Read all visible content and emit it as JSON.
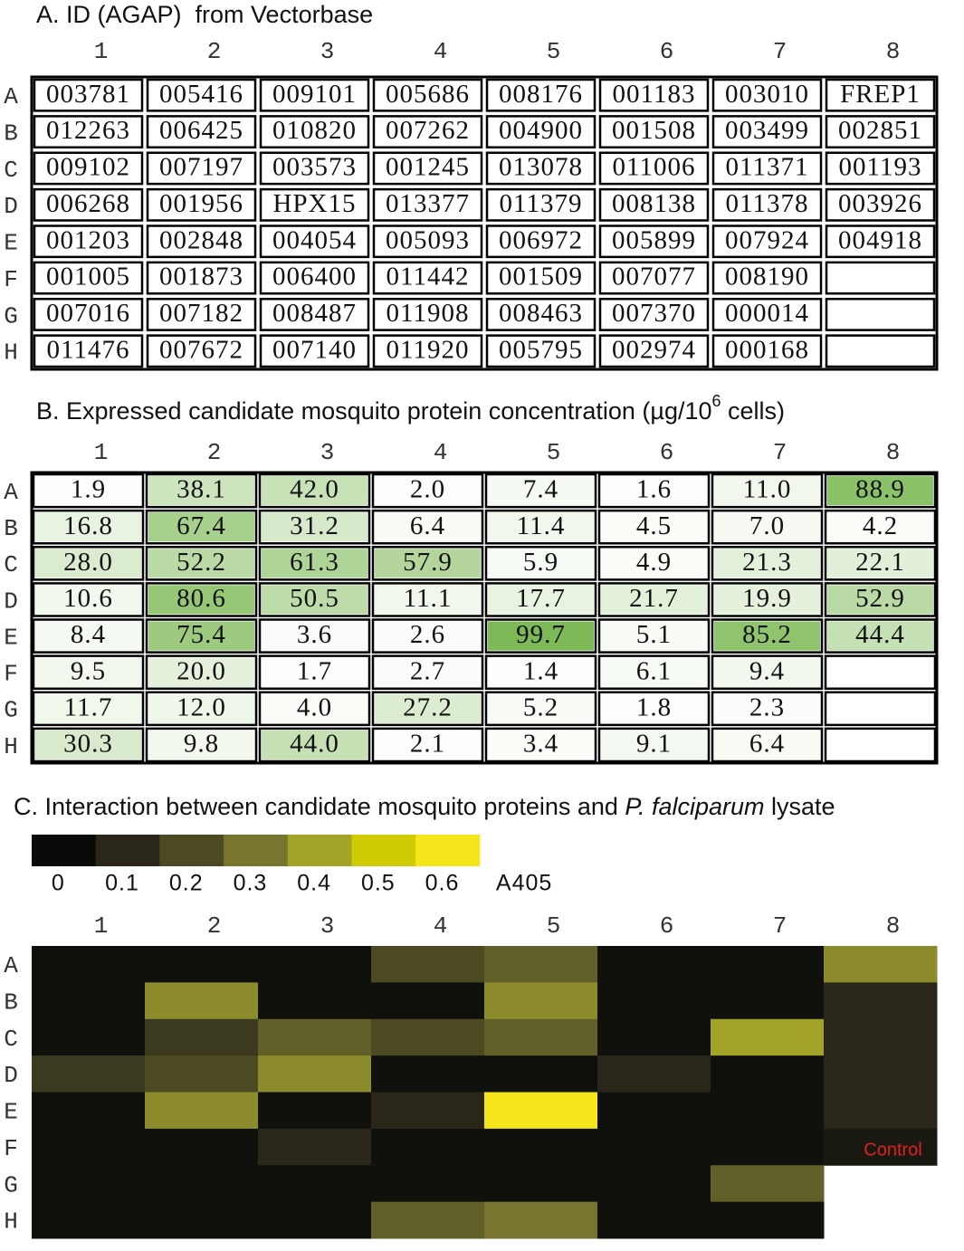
{
  "panel_a": {
    "title": "A. ID (AGAP)  from Vectorbase",
    "columns": [
      "1",
      "2",
      "3",
      "4",
      "5",
      "6",
      "7",
      "8"
    ],
    "rows": [
      "A",
      "B",
      "C",
      "D",
      "E",
      "F",
      "G",
      "H"
    ],
    "cells": [
      [
        "003781",
        "005416",
        "009101",
        "005686",
        "008176",
        "001183",
        "003010",
        "FREP1"
      ],
      [
        "012263",
        "006425",
        "010820",
        "007262",
        "004900",
        "001508",
        "003499",
        "002851"
      ],
      [
        "009102",
        "007197",
        "003573",
        "001245",
        "013078",
        "011006",
        "011371",
        "001193"
      ],
      [
        "006268",
        "001956",
        "HPX15",
        "013377",
        "011379",
        "008138",
        "011378",
        "003926"
      ],
      [
        "001203",
        "002848",
        "004054",
        "005093",
        "006972",
        "005899",
        "007924",
        "004918"
      ],
      [
        "001005",
        "001873",
        "006400",
        "011442",
        "001509",
        "007077",
        "008190",
        null
      ],
      [
        "007016",
        "007182",
        "008487",
        "011908",
        "008463",
        "007370",
        "000014",
        null
      ],
      [
        "011476",
        "007672",
        "007140",
        "011920",
        "005795",
        "002974",
        "000168",
        null
      ]
    ]
  },
  "chart_data": [
    {
      "type": "heatmap",
      "title": "B. Expressed candidate mosquito protein concentration (µg/10",
      "title_sup": "6",
      "title_end": " cells)",
      "x": [
        "1",
        "2",
        "3",
        "4",
        "5",
        "6",
        "7",
        "8"
      ],
      "y": [
        "A",
        "B",
        "C",
        "D",
        "E",
        "F",
        "G",
        "H"
      ],
      "values": [
        [
          1.9,
          38.1,
          42.0,
          2.0,
          7.4,
          1.6,
          11.0,
          88.9
        ],
        [
          16.8,
          67.4,
          31.2,
          6.4,
          11.4,
          4.5,
          7.0,
          4.2
        ],
        [
          28.0,
          52.2,
          61.3,
          57.9,
          5.9,
          4.9,
          21.3,
          22.1
        ],
        [
          10.6,
          80.6,
          50.5,
          11.1,
          17.7,
          21.7,
          19.9,
          52.9
        ],
        [
          8.4,
          75.4,
          3.6,
          2.6,
          99.7,
          5.1,
          85.2,
          44.4
        ],
        [
          9.5,
          20.0,
          1.7,
          2.7,
          1.4,
          6.1,
          9.4,
          null
        ],
        [
          11.7,
          12.0,
          4.0,
          27.2,
          5.2,
          1.8,
          2.3,
          null
        ],
        [
          30.3,
          9.8,
          44.0,
          2.1,
          3.4,
          9.1,
          6.4,
          null
        ]
      ],
      "value_labels": [
        [
          "1.9",
          "38.1",
          "42.0",
          "2.0",
          "7.4",
          "1.6",
          "11.0",
          "88.9"
        ],
        [
          "16.8",
          "67.4",
          "31.2",
          "6.4",
          "11.4",
          "4.5",
          "7.0",
          "4.2"
        ],
        [
          "28.0",
          "52.2",
          "61.3",
          "57.9",
          "5.9",
          "4.9",
          "21.3",
          "22.1"
        ],
        [
          "10.6",
          "80.6",
          "50.5",
          "11.1",
          "17.7",
          "21.7",
          "19.9",
          "52.9"
        ],
        [
          "8.4",
          "75.4",
          "3.6",
          "2.6",
          "99.7",
          "5.1",
          "85.2",
          "44.4"
        ],
        [
          "9.5",
          "20.0",
          "1.7",
          "2.7",
          "1.4",
          "6.1",
          "9.4",
          null
        ],
        [
          "11.7",
          "12.0",
          "4.0",
          "27.2",
          "5.2",
          "1.8",
          "2.3",
          null
        ],
        [
          "30.3",
          "9.8",
          "44.0",
          "2.1",
          "3.4",
          "9.1",
          "6.4",
          null
        ]
      ],
      "colormap": [
        "#ffffff",
        "#7db955"
      ],
      "clim": [
        0,
        100
      ]
    },
    {
      "type": "heatmap",
      "title": "C. Interaction between candidate mosquito proteins and ",
      "title_italic": "P. falciparum",
      "title_end": " lysate",
      "x": [
        "1",
        "2",
        "3",
        "4",
        "5",
        "6",
        "7",
        "8"
      ],
      "y": [
        "A",
        "B",
        "C",
        "D",
        "E",
        "F",
        "G",
        "H"
      ],
      "values": [
        [
          0.02,
          0.02,
          0.02,
          0.2,
          0.25,
          0.02,
          0.02,
          0.35
        ],
        [
          0.02,
          0.35,
          0.02,
          0.02,
          0.35,
          0.02,
          0.02,
          0.1
        ],
        [
          0.02,
          0.15,
          0.25,
          0.2,
          0.25,
          0.02,
          0.4,
          0.1
        ],
        [
          0.15,
          0.2,
          0.35,
          0.02,
          0.02,
          0.1,
          0.02,
          0.1
        ],
        [
          0.02,
          0.35,
          0.02,
          0.1,
          0.6,
          0.02,
          0.02,
          0.1
        ],
        [
          0.02,
          0.02,
          0.1,
          0.02,
          0.02,
          0.02,
          0.02,
          0.05
        ],
        [
          0.02,
          0.02,
          0.02,
          0.02,
          0.02,
          0.02,
          0.25,
          null
        ],
        [
          0.02,
          0.02,
          0.02,
          0.25,
          0.3,
          0.02,
          0.02,
          null
        ]
      ],
      "colormap": [
        "#0a0a08",
        "#2a271a",
        "#4b4a22",
        "#77752f",
        "#a3a32a",
        "#d0cb05",
        "#f5e61c"
      ],
      "clim": [
        0,
        0.6
      ],
      "colorbar_ticks": [
        0,
        0.1,
        0.2,
        0.3,
        0.4,
        0.5,
        0.6
      ],
      "colorbar_label": "A405",
      "annotation": "Control"
    }
  ]
}
